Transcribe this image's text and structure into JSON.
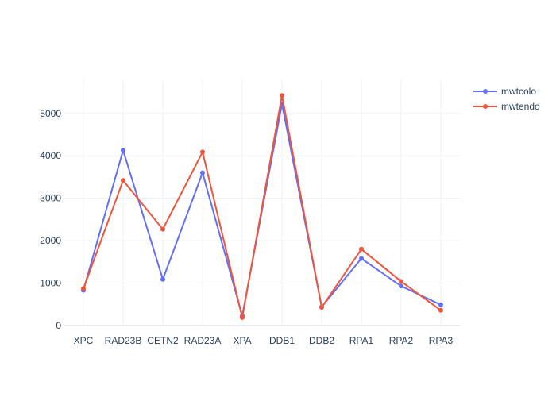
{
  "chart_data": {
    "type": "line",
    "title": "",
    "xlabel": "",
    "ylabel": "",
    "categories": [
      "XPC",
      "RAD23B",
      "CETN2",
      "RAD23A",
      "XPA",
      "DDB1",
      "DDB2",
      "RPA1",
      "RPA2",
      "RPA3"
    ],
    "ylim": [
      0,
      5800
    ],
    "yticks": [
      0,
      1000,
      2000,
      3000,
      4000,
      5000
    ],
    "grid": true,
    "legend_position": "top-right",
    "series": [
      {
        "name": "mwtcolo",
        "color": "#636efa",
        "values": [
          830,
          4130,
          1090,
          3600,
          230,
          5220,
          440,
          1580,
          930,
          490
        ]
      },
      {
        "name": "mwtendo",
        "color": "#ef553b",
        "values": [
          870,
          3420,
          2270,
          4090,
          190,
          5420,
          430,
          1800,
          1040,
          360
        ]
      }
    ]
  }
}
